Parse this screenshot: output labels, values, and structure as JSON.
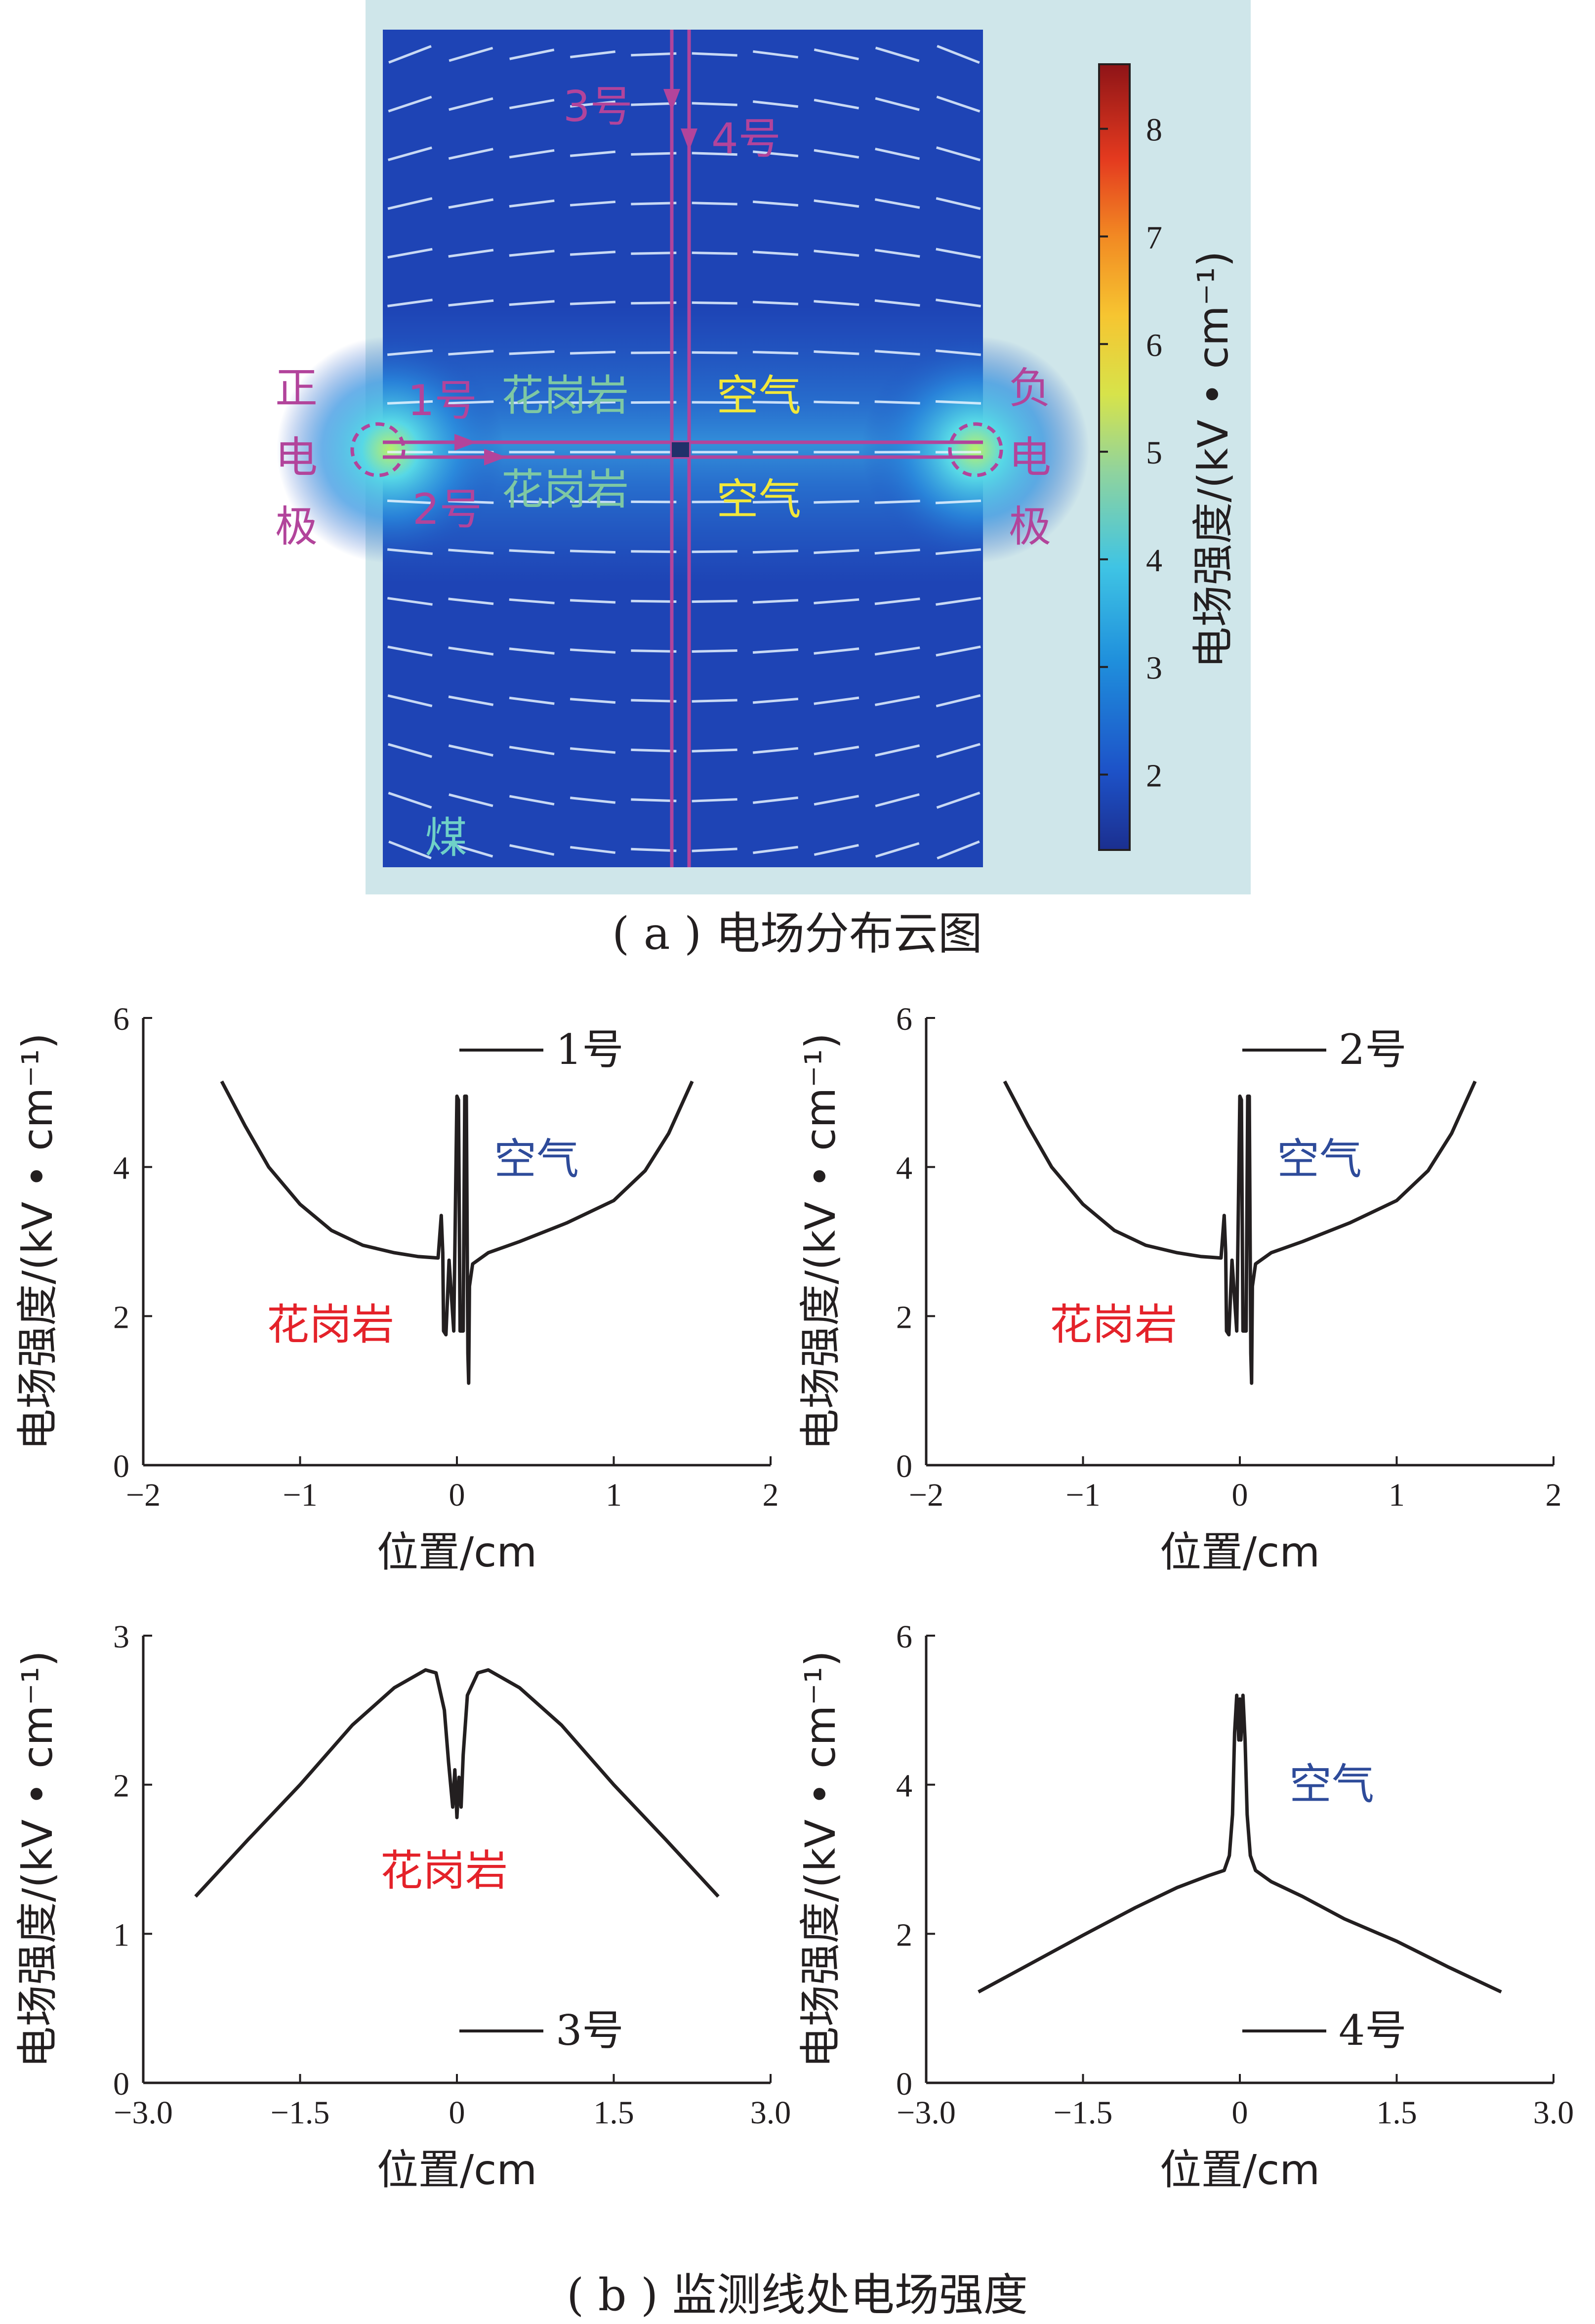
{
  "colors": {
    "line": "#231f20",
    "granite_label": "#e4222a",
    "air_label_chart": "#2e4b9a",
    "map_magenta": "#b2449b",
    "map_green": "#7ec8a3",
    "map_yellow": "#f2e83a",
    "map_bg": "#cfe6ea",
    "coal_label": "#6fd0c7"
  },
  "field_map": {
    "caption": "( a ) 电场分布云图",
    "positive_electrode": [
      "正",
      "电",
      "极"
    ],
    "negative_electrode": [
      "负",
      "电",
      "极"
    ],
    "line1": "1号",
    "line2": "2号",
    "line3": "3号",
    "line4": "4号",
    "granite_top": "花岗岩",
    "granite_bottom": "花岗岩",
    "air_top": "空气",
    "air_bottom": "空气",
    "coal": "煤",
    "colorbar": {
      "label": "电场强度/(kV • cm⁻¹)",
      "ticks": [
        "2",
        "3",
        "4",
        "5",
        "6",
        "7",
        "8"
      ],
      "range": [
        1.3,
        8.6
      ]
    }
  },
  "bottom_caption": "( b ) 监测线处电场强度",
  "chart_data": [
    {
      "type": "line",
      "legend": "1号",
      "xlabel": "位置/cm",
      "ylabel": "电场强度/(kV • cm⁻¹)",
      "xlim": [
        -2,
        2
      ],
      "ylim": [
        0,
        6
      ],
      "xticks": [
        "−2",
        "−1",
        "0",
        "1",
        "2"
      ],
      "yticks": [
        "0",
        "2",
        "4",
        "6"
      ],
      "annotations": [
        "花岗岩",
        "空气"
      ],
      "x": [
        -1.5,
        -1.35,
        -1.2,
        -1.0,
        -0.8,
        -0.6,
        -0.4,
        -0.25,
        -0.12,
        -0.1,
        -0.09,
        -0.085,
        -0.07,
        -0.05,
        -0.02,
        0.0,
        0.01,
        0.02,
        0.04,
        0.05,
        0.06,
        0.07,
        0.075,
        0.08,
        0.1,
        0.2,
        0.4,
        0.7,
        1.0,
        1.2,
        1.35,
        1.5
      ],
      "y": [
        5.15,
        4.55,
        4.0,
        3.5,
        3.15,
        2.95,
        2.85,
        2.8,
        2.78,
        3.35,
        2.85,
        1.8,
        1.75,
        2.75,
        1.8,
        4.95,
        4.9,
        1.8,
        1.8,
        4.95,
        4.95,
        1.5,
        1.1,
        2.4,
        2.7,
        2.85,
        3.0,
        3.25,
        3.55,
        3.95,
        4.45,
        5.15
      ]
    },
    {
      "type": "line",
      "legend": "2号",
      "xlabel": "位置/cm",
      "ylabel": "电场强度/(kV • cm⁻¹)",
      "xlim": [
        -2,
        2
      ],
      "ylim": [
        0,
        6
      ],
      "xticks": [
        "−2",
        "−1",
        "0",
        "1",
        "2"
      ],
      "yticks": [
        "0",
        "2",
        "4",
        "6"
      ],
      "annotations": [
        "花岗岩",
        "空气"
      ],
      "x": [
        -1.5,
        -1.35,
        -1.2,
        -1.0,
        -0.8,
        -0.6,
        -0.4,
        -0.25,
        -0.12,
        -0.1,
        -0.09,
        -0.085,
        -0.07,
        -0.05,
        -0.02,
        0.0,
        0.01,
        0.02,
        0.04,
        0.05,
        0.06,
        0.07,
        0.075,
        0.08,
        0.1,
        0.2,
        0.4,
        0.7,
        1.0,
        1.2,
        1.35,
        1.5
      ],
      "y": [
        5.15,
        4.55,
        4.0,
        3.5,
        3.15,
        2.95,
        2.85,
        2.8,
        2.78,
        3.35,
        2.85,
        1.8,
        1.75,
        2.75,
        1.8,
        4.95,
        4.9,
        1.8,
        1.8,
        4.95,
        4.95,
        1.5,
        1.1,
        2.4,
        2.7,
        2.85,
        3.0,
        3.25,
        3.55,
        3.95,
        4.45,
        5.15
      ]
    },
    {
      "type": "line",
      "legend": "3号",
      "xlabel": "位置/cm",
      "ylabel": "电场强度/(kV • cm⁻¹)",
      "xlim": [
        -3.0,
        3.0
      ],
      "ylim": [
        0,
        3
      ],
      "xticks": [
        "−3.0",
        "−1.5",
        "0",
        "1.5",
        "3.0"
      ],
      "yticks": [
        "0",
        "1",
        "2",
        "3"
      ],
      "annotations": [
        "花岗岩"
      ],
      "x": [
        -2.5,
        -2.0,
        -1.5,
        -1.0,
        -0.6,
        -0.3,
        -0.2,
        -0.12,
        -0.08,
        -0.04,
        -0.02,
        0.0,
        0.02,
        0.04,
        0.06,
        0.1,
        0.2,
        0.3,
        0.6,
        1.0,
        1.5,
        2.0,
        2.5
      ],
      "y": [
        1.25,
        1.63,
        2.0,
        2.4,
        2.65,
        2.77,
        2.75,
        2.5,
        2.15,
        1.85,
        2.1,
        1.78,
        2.05,
        1.85,
        2.2,
        2.6,
        2.75,
        2.77,
        2.65,
        2.4,
        2.0,
        1.63,
        1.25
      ]
    },
    {
      "type": "line",
      "legend": "4号",
      "xlabel": "位置/cm",
      "ylabel": "电场强度/(kV • cm⁻¹)",
      "xlim": [
        -3.0,
        3.0
      ],
      "ylim": [
        0,
        6
      ],
      "xticks": [
        "−3.0",
        "−1.5",
        "0",
        "1.5",
        "3.0"
      ],
      "yticks": [
        "0",
        "2",
        "4",
        "6"
      ],
      "annotations": [
        "空气"
      ],
      "x": [
        -2.5,
        -2.0,
        -1.5,
        -1.0,
        -0.6,
        -0.3,
        -0.15,
        -0.1,
        -0.07,
        -0.05,
        -0.03,
        -0.01,
        0.0,
        0.01,
        0.03,
        0.05,
        0.07,
        0.1,
        0.15,
        0.3,
        0.6,
        1.0,
        1.5,
        2.0,
        2.5
      ],
      "y": [
        1.22,
        1.6,
        1.98,
        2.35,
        2.62,
        2.78,
        2.85,
        3.05,
        3.6,
        4.7,
        5.2,
        4.6,
        5.15,
        4.6,
        5.2,
        4.6,
        3.6,
        3.05,
        2.85,
        2.7,
        2.5,
        2.2,
        1.9,
        1.55,
        1.22
      ]
    }
  ]
}
